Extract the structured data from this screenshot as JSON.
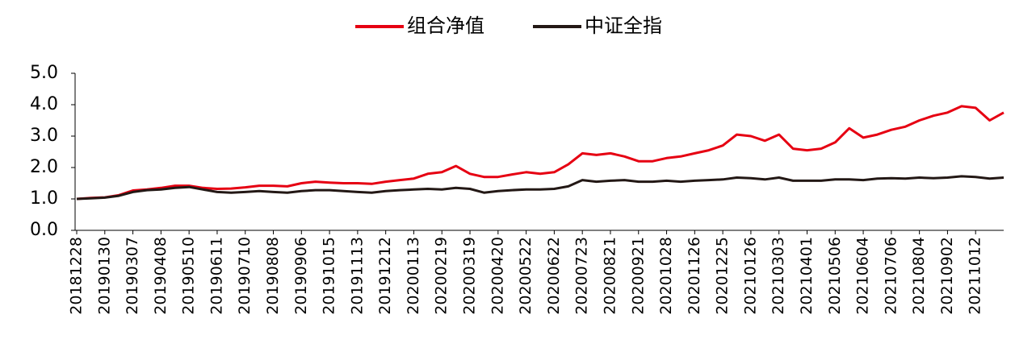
{
  "chart_data": {
    "type": "line",
    "categories": [
      "20181228",
      null,
      "20190130",
      null,
      "20190307",
      null,
      "20190408",
      null,
      "20190510",
      null,
      "20190611",
      null,
      "20190710",
      null,
      "20190808",
      null,
      "20190906",
      null,
      "20191015",
      null,
      "20191113",
      null,
      "20191212",
      null,
      "20200113",
      null,
      "20200219",
      null,
      "20200319",
      null,
      "20200420",
      null,
      "20200522",
      null,
      "20200622",
      null,
      "20200723",
      null,
      "20200821",
      null,
      "20200921",
      null,
      "20201028",
      null,
      "20201126",
      null,
      "20201225",
      null,
      "20210126",
      null,
      "20210303",
      null,
      "20210401",
      null,
      "20210506",
      null,
      "20210604",
      null,
      "20210706",
      null,
      "20210804",
      null,
      "20210902",
      null,
      "20211012",
      null,
      null
    ],
    "series": [
      {
        "name": "组合净值",
        "color": "#e60012",
        "values": [
          1.0,
          1.03,
          1.05,
          1.12,
          1.27,
          1.3,
          1.35,
          1.42,
          1.42,
          1.35,
          1.32,
          1.33,
          1.37,
          1.42,
          1.42,
          1.4,
          1.5,
          1.55,
          1.52,
          1.5,
          1.5,
          1.48,
          1.55,
          1.6,
          1.65,
          1.8,
          1.85,
          2.05,
          1.8,
          1.7,
          1.7,
          1.78,
          1.85,
          1.8,
          1.85,
          2.1,
          2.45,
          2.4,
          2.45,
          2.35,
          2.2,
          2.2,
          2.3,
          2.35,
          2.45,
          2.55,
          2.7,
          3.05,
          3.0,
          2.85,
          3.05,
          2.6,
          2.55,
          2.6,
          2.8,
          3.25,
          2.95,
          3.05,
          3.2,
          3.3,
          3.5,
          3.65,
          3.75,
          3.95,
          3.9,
          3.5,
          3.75
        ]
      },
      {
        "name": "中证全指",
        "color": "#231815",
        "values": [
          1.0,
          1.02,
          1.04,
          1.1,
          1.22,
          1.28,
          1.3,
          1.35,
          1.38,
          1.3,
          1.22,
          1.2,
          1.22,
          1.25,
          1.22,
          1.2,
          1.25,
          1.28,
          1.28,
          1.25,
          1.22,
          1.2,
          1.25,
          1.28,
          1.3,
          1.32,
          1.3,
          1.35,
          1.32,
          1.2,
          1.25,
          1.28,
          1.3,
          1.3,
          1.32,
          1.4,
          1.6,
          1.55,
          1.58,
          1.6,
          1.55,
          1.55,
          1.58,
          1.55,
          1.58,
          1.6,
          1.62,
          1.68,
          1.66,
          1.62,
          1.68,
          1.58,
          1.58,
          1.58,
          1.62,
          1.62,
          1.6,
          1.65,
          1.66,
          1.65,
          1.68,
          1.66,
          1.68,
          1.72,
          1.7,
          1.65,
          1.68
        ]
      }
    ],
    "ylim": [
      0,
      5
    ],
    "yticks": [
      {
        "value": 0,
        "label": "0.0"
      },
      {
        "value": 1,
        "label": "1.0"
      },
      {
        "value": 2,
        "label": "2.0"
      },
      {
        "value": 3,
        "label": "3.0"
      },
      {
        "value": 4,
        "label": "4.0"
      },
      {
        "value": 5,
        "label": "5.0"
      }
    ],
    "grid": false,
    "legend": "top"
  }
}
